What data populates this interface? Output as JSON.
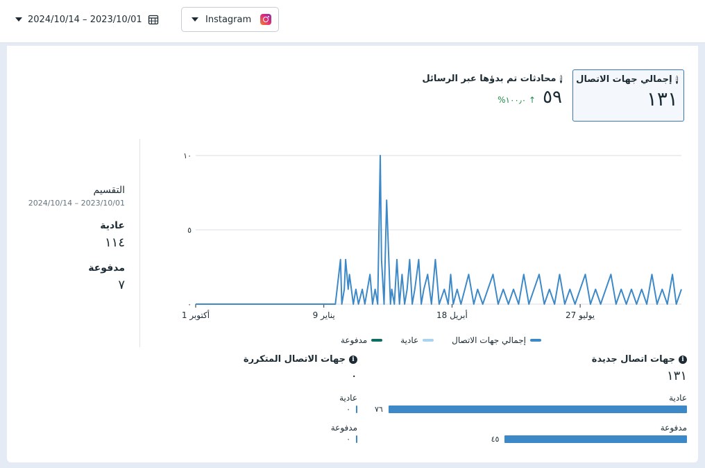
{
  "toolbar": {
    "date_range": "2024/10/14 – 2023/10/01",
    "platform": "Instagram"
  },
  "metrics": {
    "total_contacts_title": "إجمالي جهات الاتصال",
    "total_contacts_value": "١٣١",
    "conversations_title": "محادثات تم بدؤها عبر الرسائل",
    "conversations_value": "٥٩",
    "conversations_delta": "↑ ١٠٠٫٠%"
  },
  "breakdown": {
    "title": "التقسيم",
    "date_range": "2024/10/14 – 2023/10/01",
    "organic_label": "عادية",
    "organic_value": "١١٤",
    "paid_label": "مدفوعة",
    "paid_value": "٧"
  },
  "legend": {
    "total": "إجمالي جهات الاتصال",
    "organic": "عادية",
    "paid": "مدفوعة"
  },
  "colors": {
    "total": "#3d88c7",
    "organic": "#a9d4ef",
    "paid": "#0f6e63",
    "accent": "#3b75b8"
  },
  "chart_data": {
    "type": "line",
    "x_tick_labels": [
      "1 أكتوبر",
      "9 يناير",
      "18 أبريل",
      "27 يوليو"
    ],
    "y_tick_labels": [
      "١٠",
      "٥",
      "٠"
    ],
    "ylim": [
      0,
      10
    ],
    "x_start": "2023-10-01",
    "x_end": "2024-10-14",
    "grid": true,
    "series": [
      {
        "name": "إجمالي جهات الاتصال",
        "x": [
          "2024-01-18",
          "2024-01-22",
          "2024-01-23",
          "2024-01-25",
          "2024-01-26",
          "2024-01-28",
          "2024-01-29",
          "2024-02-01",
          "2024-02-03",
          "2024-02-05",
          "2024-02-08",
          "2024-02-10",
          "2024-02-12",
          "2024-02-14",
          "2024-02-16",
          "2024-02-18",
          "2024-02-20",
          "2024-02-22",
          "2024-02-23",
          "2024-02-25",
          "2024-02-27",
          "2024-03-01",
          "2024-03-02",
          "2024-03-04",
          "2024-03-06",
          "2024-03-08",
          "2024-03-10",
          "2024-03-12",
          "2024-03-14",
          "2024-03-16",
          "2024-03-18",
          "2024-03-20",
          "2024-03-23",
          "2024-03-25",
          "2024-03-27",
          "2024-03-30",
          "2024-04-02",
          "2024-04-05",
          "2024-04-08",
          "2024-04-12",
          "2024-04-15",
          "2024-04-17",
          "2024-04-19",
          "2024-04-22",
          "2024-04-25",
          "2024-04-28",
          "2024-05-01",
          "2024-05-05",
          "2024-05-08",
          "2024-05-12",
          "2024-05-16",
          "2024-05-20",
          "2024-05-24",
          "2024-05-28",
          "2024-06-01",
          "2024-06-05",
          "2024-06-09",
          "2024-06-13",
          "2024-06-17",
          "2024-06-21",
          "2024-06-25",
          "2024-06-29",
          "2024-07-03",
          "2024-07-07",
          "2024-07-11",
          "2024-07-15",
          "2024-07-19",
          "2024-07-23",
          "2024-07-27",
          "2024-07-31",
          "2024-08-04",
          "2024-08-08",
          "2024-08-12",
          "2024-08-16",
          "2024-08-20",
          "2024-08-24",
          "2024-08-28",
          "2024-09-01",
          "2024-09-05",
          "2024-09-09",
          "2024-09-13",
          "2024-09-17",
          "2024-09-21",
          "2024-09-25",
          "2024-09-29",
          "2024-10-03",
          "2024-10-07",
          "2024-10-10",
          "2024-10-14"
        ],
        "values": [
          0,
          3,
          0,
          1,
          3,
          1,
          2,
          0,
          1,
          0,
          1,
          0,
          1,
          2,
          0,
          1,
          0,
          10,
          3,
          0,
          7,
          0,
          1,
          0,
          3,
          0,
          2,
          0,
          1,
          3,
          0,
          1,
          3,
          0,
          1,
          2,
          0,
          3,
          0,
          1,
          0,
          2,
          0,
          1,
          0,
          1,
          2,
          0,
          1,
          0,
          1,
          2,
          0,
          1,
          0,
          1,
          0,
          2,
          0,
          1,
          2,
          0,
          1,
          0,
          2,
          0,
          1,
          0,
          1,
          2,
          0,
          1,
          0,
          1,
          2,
          0,
          1,
          0,
          1,
          0,
          1,
          0,
          2,
          0,
          1,
          0,
          2,
          0,
          1
        ]
      },
      {
        "name": "عادية",
        "values": []
      },
      {
        "name": "مدفوعة",
        "values": []
      }
    ]
  },
  "new_contacts": {
    "title": "جهات اتصال جديدة",
    "value": "١٣١",
    "organic_label": "عادية",
    "organic_value": "٧٦",
    "organic_fraction": 1.0,
    "paid_label": "مدفوعة",
    "paid_value": "٤٥",
    "paid_fraction": 0.59
  },
  "returning_contacts": {
    "title": "جهات الاتصال المتكررة",
    "value": "٠",
    "organic_label": "عادية",
    "organic_value": "٠",
    "organic_fraction": 0,
    "paid_label": "مدفوعة",
    "paid_value": "٠",
    "paid_fraction": 0
  }
}
